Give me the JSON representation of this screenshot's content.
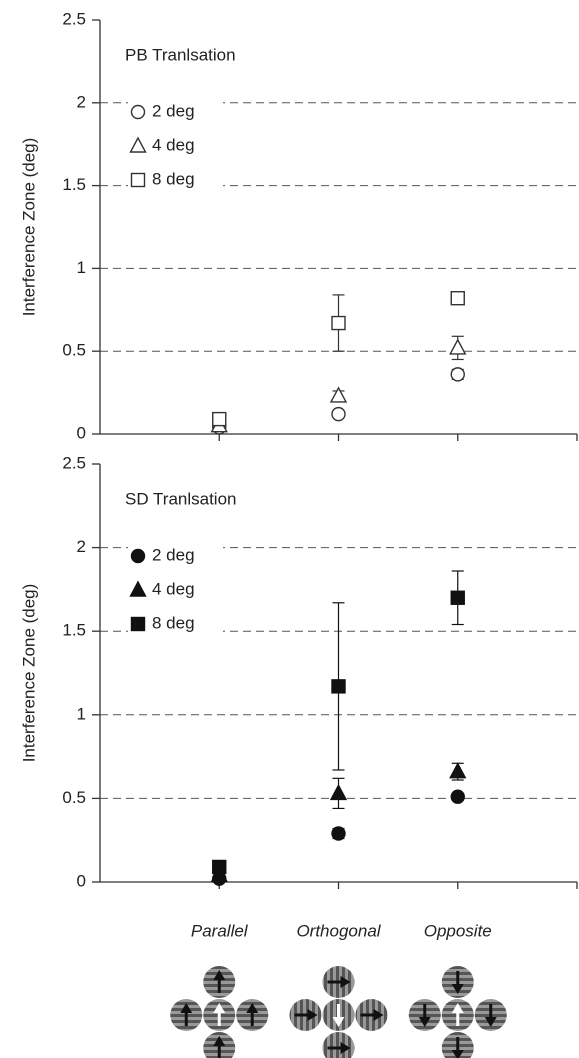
{
  "chart_data": [
    {
      "type": "scatter",
      "title": "PB Tranlsation",
      "ylabel": "Interference Zone (deg)",
      "categories": [
        null,
        null,
        null
      ],
      "marker_fill": "open",
      "ylim": [
        0,
        2.5
      ],
      "yticks": [
        0,
        0.5,
        1,
        1.5,
        2,
        2.5
      ],
      "grid": true,
      "series": [
        {
          "name": "2 deg",
          "color": "#333333",
          "marker": "circle",
          "values": [
            0.04,
            0.12,
            0.36
          ],
          "errors": [
            0.01,
            0.02,
            0.03
          ]
        },
        {
          "name": "4 deg",
          "color": "#333333",
          "marker": "triangle",
          "values": [
            0.05,
            0.23,
            0.52
          ],
          "errors": [
            0.01,
            0.03,
            0.07
          ]
        },
        {
          "name": "8 deg",
          "color": "#333333",
          "marker": "square",
          "values": [
            0.09,
            0.67,
            0.82
          ],
          "errors": [
            0.01,
            0.17,
            0.02
          ]
        }
      ]
    },
    {
      "type": "scatter",
      "title": "SD Tranlsation",
      "ylabel": "Interference Zone (deg)",
      "categories": [
        "Parallel",
        "Orthogonal",
        "Opposite"
      ],
      "marker_fill": "filled",
      "ylim": [
        0,
        2.5
      ],
      "yticks": [
        0,
        0.5,
        1,
        1.5,
        2,
        2.5
      ],
      "grid": true,
      "series": [
        {
          "name": "2 deg",
          "color": "#111111",
          "marker": "circle",
          "values": [
            0.02,
            0.29,
            0.51
          ],
          "errors": [
            0.01,
            0.03,
            0.02
          ]
        },
        {
          "name": "4 deg",
          "color": "#111111",
          "marker": "triangle",
          "values": [
            0.04,
            0.53,
            0.66
          ],
          "errors": [
            0.01,
            0.09,
            0.05
          ]
        },
        {
          "name": "8 deg",
          "color": "#111111",
          "marker": "square",
          "values": [
            0.09,
            1.17,
            1.7
          ],
          "errors": [
            0.01,
            0.5,
            0.16
          ]
        }
      ]
    }
  ]
}
